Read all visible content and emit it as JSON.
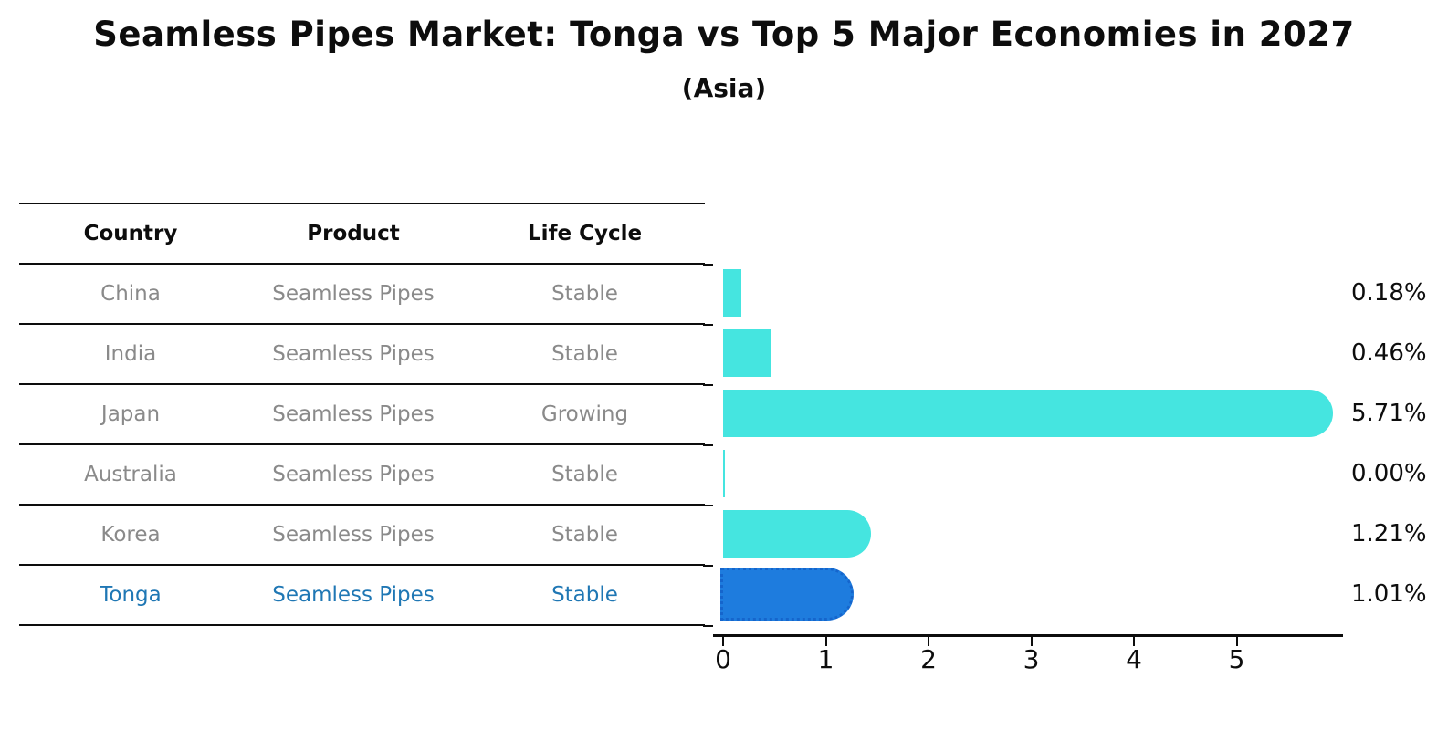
{
  "title": "Seamless Pipes Market: Tonga vs Top 5 Major Economies in 2027",
  "subtitle": "(Asia)",
  "table": {
    "headers": [
      "Country",
      "Product",
      "Life Cycle"
    ],
    "rows": [
      {
        "country": "China",
        "product": "Seamless Pipes",
        "life_cycle": "Stable",
        "highlight": false
      },
      {
        "country": "India",
        "product": "Seamless Pipes",
        "life_cycle": "Stable",
        "highlight": false
      },
      {
        "country": "Japan",
        "product": "Seamless Pipes",
        "life_cycle": "Growing",
        "highlight": false
      },
      {
        "country": "Australia",
        "product": "Seamless Pipes",
        "life_cycle": "Stable",
        "highlight": false
      },
      {
        "country": "Korea",
        "product": "Seamless Pipes",
        "life_cycle": "Stable",
        "highlight": false
      },
      {
        "country": "Tonga",
        "product": "Seamless Pipes",
        "life_cycle": "Stable",
        "highlight": true
      }
    ]
  },
  "chart_data": {
    "type": "bar",
    "orientation": "horizontal",
    "title": "Seamless Pipes Market: Tonga vs Top 5 Major Economies in 2027",
    "subtitle": "(Asia)",
    "categories": [
      "China",
      "India",
      "Japan",
      "Australia",
      "Korea",
      "Tonga"
    ],
    "values": [
      0.18,
      0.46,
      5.71,
      0.0,
      1.21,
      1.01
    ],
    "value_labels": [
      "0.18%",
      "0.46%",
      "5.71%",
      "0.00%",
      "1.21%",
      "1.01%"
    ],
    "rounded_cap": [
      false,
      false,
      true,
      false,
      true,
      true
    ],
    "highlight_index": 5,
    "x_ticks": [
      "0",
      "1",
      "2",
      "3",
      "4",
      "5"
    ],
    "xlim": [
      0,
      6
    ],
    "grid": false,
    "legend": "none",
    "colors": {
      "bar": "#45E5E0",
      "highlight_bar": "#1E7CDE",
      "highlight_border": "#1565CC",
      "highlight_text": "#1f77b4",
      "axis": "#0d0d0d",
      "table_text": "#8a8a8a"
    }
  }
}
